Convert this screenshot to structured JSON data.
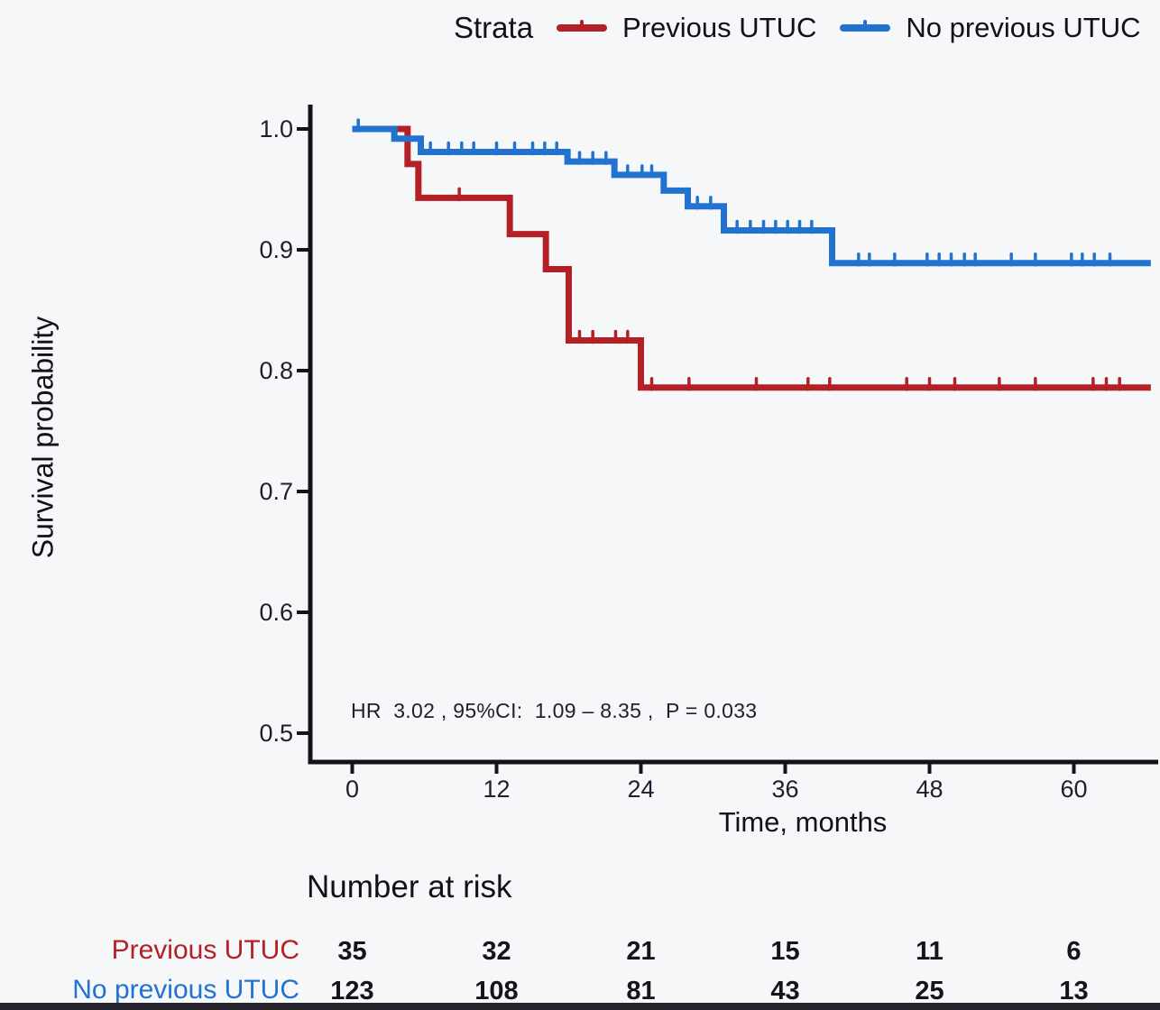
{
  "figure": {
    "background": "#f6f7f9",
    "bottom_bar_color": "#26242c"
  },
  "legend": {
    "title": "Strata"
  },
  "chart_data": {
    "type": "line",
    "subtype": "kaplan-meier-step",
    "title": "",
    "xlabel": "Time, months",
    "ylabel": "Survival probability",
    "x_ticks": [
      0,
      12,
      24,
      36,
      48,
      60
    ],
    "y_ticks": [
      1.0,
      0.9,
      0.8,
      0.7,
      0.6,
      0.5
    ],
    "xlim": [
      0,
      66.4
    ],
    "ylim": [
      0.47,
      1.0
    ],
    "grid": false,
    "legend_position": "top",
    "axis_color": "#151219",
    "annotation": "HR  3.02 , 95%CI:  1.09 – 8.35 ,  P = 0.033",
    "end_time": 66.4,
    "series": [
      {
        "name": "Previous UTUC",
        "color": "#b42025",
        "steps": [
          [
            4.6,
            0.971
          ],
          [
            5.5,
            0.943
          ],
          [
            13.1,
            0.913
          ],
          [
            16.1,
            0.884
          ],
          [
            18.0,
            0.825
          ],
          [
            24.0,
            0.786
          ]
        ],
        "censor_times": [
          8.9,
          18.9,
          20.0,
          21.9,
          22.9,
          24.9,
          28.0,
          33.6,
          37.9,
          39.7,
          46.1,
          48.0,
          50.1,
          53.8,
          56.8,
          61.6,
          62.7,
          63.8
        ]
      },
      {
        "name": "No previous UTUC",
        "color": "#2273d0",
        "steps": [
          [
            3.5,
            0.992
          ],
          [
            5.7,
            0.981
          ],
          [
            17.9,
            0.973
          ],
          [
            21.8,
            0.962
          ],
          [
            25.9,
            0.949
          ],
          [
            27.9,
            0.936
          ],
          [
            30.9,
            0.916
          ],
          [
            39.9,
            0.889
          ]
        ],
        "censor_times": [
          0.5,
          6.5,
          8.0,
          9.1,
          10.1,
          12.0,
          13.5,
          15.0,
          16.0,
          17.0,
          18.9,
          20.0,
          21.1,
          22.9,
          24.1,
          24.9,
          28.7,
          29.8,
          32.0,
          33.1,
          34.2,
          35.2,
          36.2,
          37.2,
          38.2,
          42.1,
          43.0,
          45.1,
          47.8,
          48.8,
          49.8,
          50.9,
          51.8,
          54.8,
          56.8,
          59.8,
          60.7,
          61.7,
          63.0
        ]
      }
    ]
  },
  "risk_table": {
    "title": "Number at risk",
    "time_points": [
      0,
      12,
      24,
      36,
      48,
      60
    ],
    "rows": [
      {
        "label": "Previous UTUC",
        "color": "#b42025",
        "counts": [
          35,
          32,
          21,
          15,
          11,
          6
        ]
      },
      {
        "label": "No previous UTUC",
        "color": "#2273d0",
        "counts": [
          123,
          108,
          81,
          43,
          25,
          13
        ]
      }
    ]
  }
}
